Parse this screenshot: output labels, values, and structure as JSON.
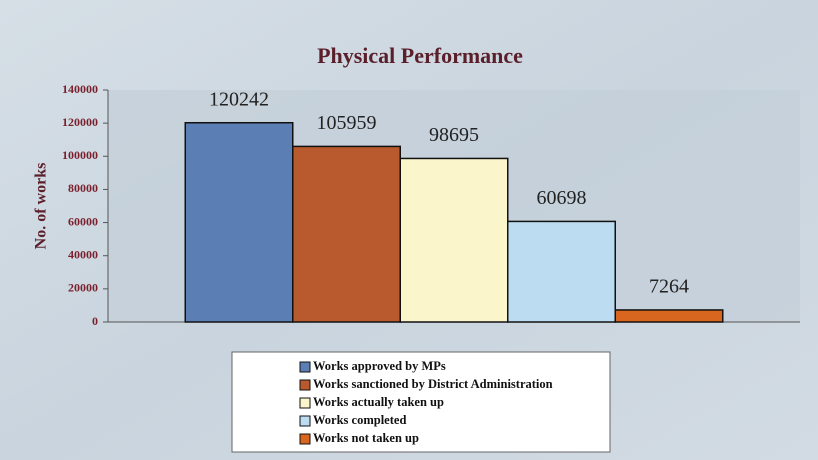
{
  "chart_data": {
    "type": "bar",
    "title": "Physical Performance",
    "ylabel": "No. of works",
    "series": [
      {
        "name": "Works approved by MPs",
        "color": "#5b7fb5",
        "values": [
          120242
        ]
      },
      {
        "name": "Works sanctioned by District Administration",
        "color": "#b85a2e",
        "values": [
          105959
        ]
      },
      {
        "name": "Works actually taken up",
        "color": "#fbf5cc",
        "values": [
          98695
        ]
      },
      {
        "name": "Works completed",
        "color": "#bcdcf2",
        "values": [
          60698
        ]
      },
      {
        "name": "Works not taken up",
        "color": "#d9661f",
        "values": [
          7264
        ]
      }
    ],
    "ylim": [
      0,
      140000
    ],
    "yticks": [
      0,
      20000,
      40000,
      60000,
      80000,
      100000,
      120000,
      140000
    ],
    "grid": false,
    "legend": "bottom"
  }
}
